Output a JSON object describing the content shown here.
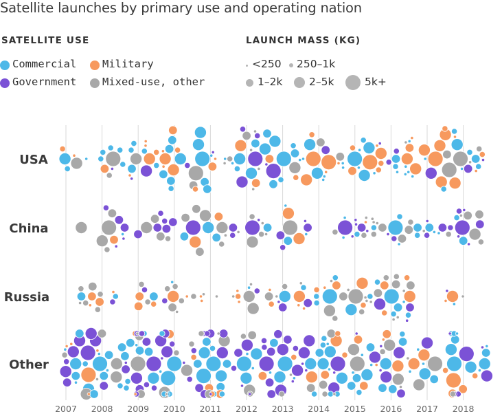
{
  "title": "Satellite launches by primary use and operating nation",
  "legend": {
    "use_heading": "SATELLITE USE",
    "mass_heading": "LAUNCH MASS (KG)",
    "uses": [
      {
        "label": "Commercial",
        "color": "#4db8e8"
      },
      {
        "label": "Military",
        "color": "#f7995e"
      },
      {
        "label": "Government",
        "color": "#7b52d6"
      },
      {
        "label": "Mixed-use, other",
        "color": "#a8a8a8"
      }
    ],
    "mass_classes": [
      "<250",
      "250–1k",
      "1–2k",
      "2–5k",
      "5k+"
    ]
  },
  "chart_data": {
    "type": "scatter",
    "title": "Satellite launches by primary use and operating nation",
    "xlabel": "",
    "ylabel": "",
    "x_ticks": [
      "2007",
      "2008",
      "2009",
      "2010",
      "2011",
      "2012",
      "2013",
      "2014",
      "2015",
      "2016",
      "2017",
      "2018"
    ],
    "xlim": [
      2007,
      2019
    ],
    "grid": "vertical",
    "rows": [
      "USA",
      "China",
      "Russia",
      "Other"
    ],
    "series": [
      {
        "name": "USA",
        "clusters": [
          {
            "start": 2006.85,
            "end": 2018.7,
            "Commercial": 70,
            "Military": 48,
            "Government": 18,
            "Mixed-use, other": 22,
            "mass_mix": [
              0.25,
              0.25,
              0.2,
              0.18,
              0.12
            ]
          }
        ]
      },
      {
        "name": "China",
        "clusters": [
          {
            "start": 2007.3,
            "end": 2007.7,
            "Commercial": 0,
            "Military": 0,
            "Government": 0,
            "Mixed-use, other": 1,
            "mass_mix": [
              0,
              0,
              0,
              1,
              0
            ]
          },
          {
            "start": 2008.0,
            "end": 2013.9,
            "Commercial": 8,
            "Military": 5,
            "Government": 20,
            "Mixed-use, other": 22,
            "mass_mix": [
              0.25,
              0.25,
              0.2,
              0.2,
              0.1
            ]
          },
          {
            "start": 2014.3,
            "end": 2018.5,
            "Commercial": 14,
            "Military": 1,
            "Government": 18,
            "Mixed-use, other": 18,
            "mass_mix": [
              0.35,
              0.25,
              0.2,
              0.15,
              0.05
            ]
          }
        ]
      },
      {
        "name": "Russia",
        "clusters": [
          {
            "start": 2007.3,
            "end": 2008.4,
            "Commercial": 2,
            "Military": 4,
            "Government": 1,
            "Mixed-use, other": 6,
            "mass_mix": [
              0.4,
              0.4,
              0.2,
              0,
              0
            ]
          },
          {
            "start": 2008.8,
            "end": 2011.3,
            "Commercial": 2,
            "Military": 7,
            "Government": 2,
            "Mixed-use, other": 10,
            "mass_mix": [
              0.35,
              0.4,
              0.2,
              0.05,
              0
            ]
          },
          {
            "start": 2011.6,
            "end": 2012.3,
            "Commercial": 1,
            "Military": 3,
            "Government": 1,
            "Mixed-use, other": 4,
            "mass_mix": [
              0.3,
              0.4,
              0.2,
              0.1,
              0
            ]
          },
          {
            "start": 2012.6,
            "end": 2016.6,
            "Commercial": 14,
            "Military": 14,
            "Government": 6,
            "Mixed-use, other": 22,
            "mass_mix": [
              0.3,
              0.3,
              0.2,
              0.15,
              0.05
            ]
          },
          {
            "start": 2017.5,
            "end": 2018.4,
            "Commercial": 1,
            "Military": 2,
            "Government": 1,
            "Mixed-use, other": 1,
            "mass_mix": [
              0.5,
              0.3,
              0,
              0.2,
              0
            ]
          }
        ]
      },
      {
        "name": "Other",
        "clusters": [
          {
            "start": 2006.85,
            "end": 2018.75,
            "Commercial": 95,
            "Military": 32,
            "Government": 75,
            "Mixed-use, other": 40,
            "mass_mix": [
              0.2,
              0.25,
              0.25,
              0.2,
              0.1
            ]
          }
        ]
      }
    ]
  }
}
